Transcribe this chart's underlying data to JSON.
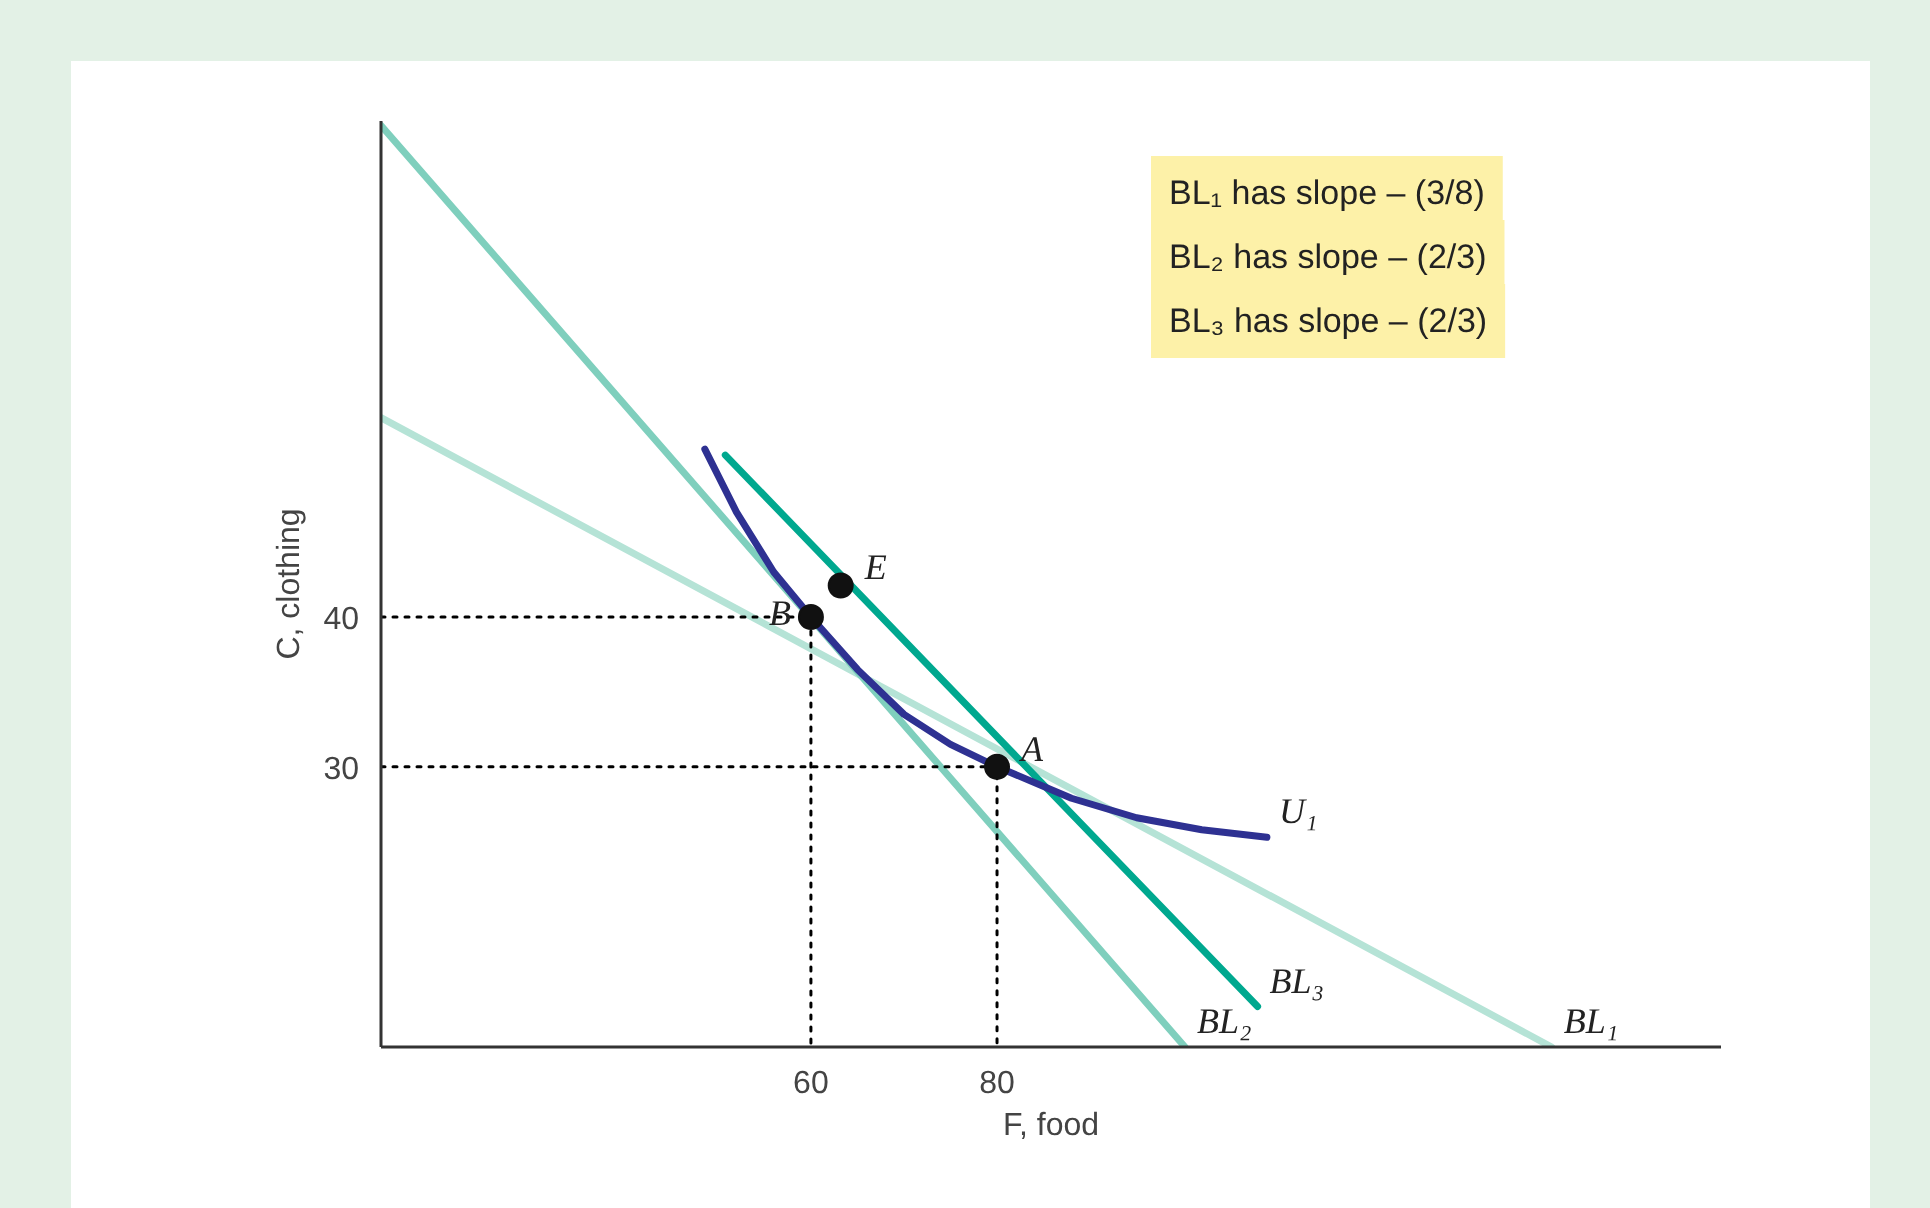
{
  "chart_data": {
    "type": "line",
    "xlabel": "F, food",
    "ylabel": "C, clothing",
    "xlim": [
      13.8,
      157.8
    ],
    "ylim": [
      11.3,
      73.1
    ],
    "xticks": [
      60,
      80
    ],
    "yticks": [
      30,
      40
    ],
    "grid": false,
    "marker": "none",
    "series": [
      {
        "name": "BL₁",
        "color": "#b5e3d6",
        "x": [
          13.8,
          139.6
        ],
        "values": [
          53.3,
          11.3
        ]
      },
      {
        "name": "BL₂",
        "color": "#7fcfbd",
        "x": [
          13.8,
          100.2
        ],
        "values": [
          72.8,
          11.3
        ]
      },
      {
        "name": "BL₃",
        "color": "#00a88f",
        "x": [
          50.8,
          108
        ],
        "values": [
          50.8,
          14
        ]
      },
      {
        "name": "U₁",
        "color": "#2e3192",
        "x": [
          48.6,
          52,
          56,
          60,
          65,
          70,
          75,
          80,
          88,
          95,
          102,
          109
        ],
        "values": [
          51.2,
          47,
          43,
          40,
          36.5,
          33.5,
          31.5,
          30,
          27.9,
          26.6,
          25.8,
          25.3
        ]
      },
      {
        "color": "#000000",
        "line_style": "dotted",
        "x": [
          13.8,
          60,
          60
        ],
        "values": [
          40,
          40,
          11.3
        ]
      },
      {
        "color": "#000000",
        "line_style": "dotted",
        "x": [
          13.8,
          80,
          80
        ],
        "values": [
          30,
          30,
          11.3
        ]
      },
      {
        "type": "scatter",
        "marker": "circle",
        "color": "#111111",
        "x": [
          60,
          80,
          63.2
        ],
        "values": [
          40,
          30,
          42.1
        ]
      }
    ],
    "annotations": [
      {
        "text": "A",
        "x": 80,
        "y": 30
      },
      {
        "text": "B",
        "x": 60,
        "y": 40
      },
      {
        "text": "E",
        "x": 63.2,
        "y": 42.1
      },
      "BL₁ has slope – (3/8)",
      "BL₂ has slope – (2/3)",
      "BL₃ has slope – (2/3)"
    ]
  }
}
